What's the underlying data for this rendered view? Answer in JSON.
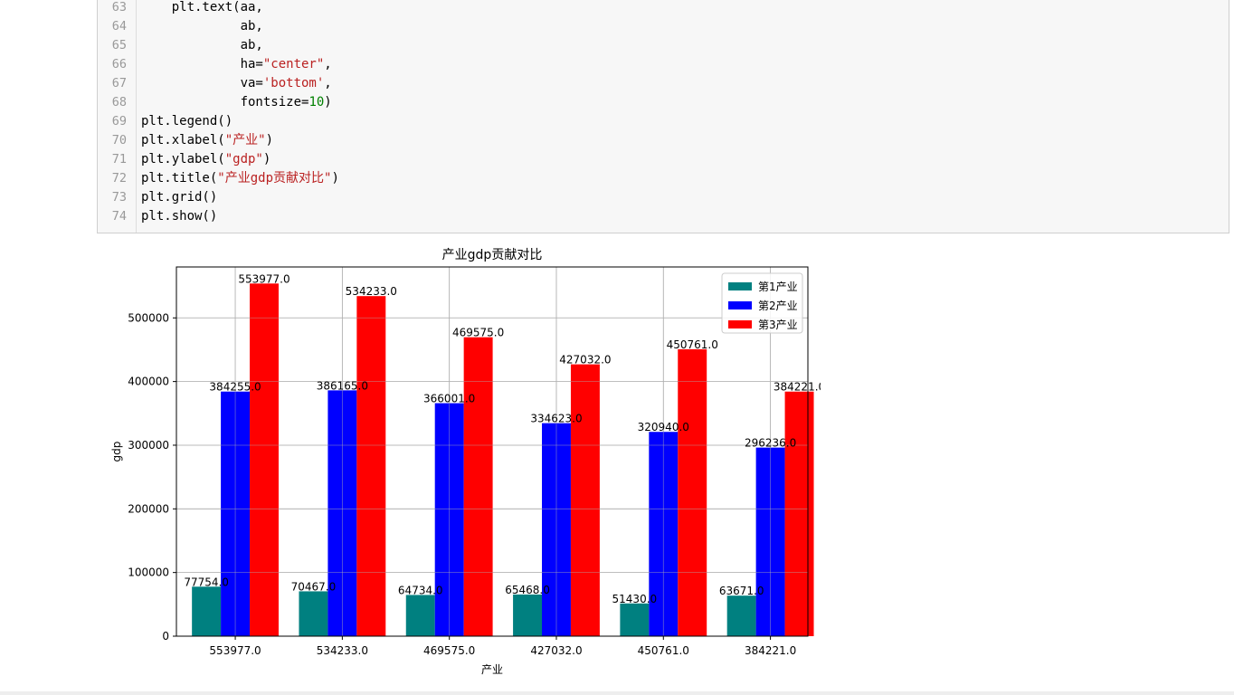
{
  "code_cell": {
    "lines": [
      {
        "num": "63",
        "tokens": [
          {
            "t": "    plt.text(aa,",
            "c": ""
          }
        ]
      },
      {
        "num": "64",
        "tokens": [
          {
            "t": "             ab,",
            "c": ""
          }
        ]
      },
      {
        "num": "65",
        "tokens": [
          {
            "t": "             ab,",
            "c": ""
          }
        ]
      },
      {
        "num": "66",
        "tokens": [
          {
            "t": "             ha=",
            "c": ""
          },
          {
            "t": "\"center\"",
            "c": "str"
          },
          {
            "t": ",",
            "c": ""
          }
        ]
      },
      {
        "num": "67",
        "tokens": [
          {
            "t": "             va=",
            "c": ""
          },
          {
            "t": "'bottom'",
            "c": "str"
          },
          {
            "t": ",",
            "c": ""
          }
        ]
      },
      {
        "num": "68",
        "tokens": [
          {
            "t": "             fontsize=",
            "c": ""
          },
          {
            "t": "10",
            "c": "num"
          },
          {
            "t": ")",
            "c": ""
          }
        ]
      },
      {
        "num": "69",
        "tokens": [
          {
            "t": "plt.legend()",
            "c": ""
          }
        ]
      },
      {
        "num": "70",
        "tokens": [
          {
            "t": "plt.xlabel(",
            "c": ""
          },
          {
            "t": "\"产业\"",
            "c": "str"
          },
          {
            "t": ")",
            "c": ""
          }
        ]
      },
      {
        "num": "71",
        "tokens": [
          {
            "t": "plt.ylabel(",
            "c": ""
          },
          {
            "t": "\"gdp\"",
            "c": "str"
          },
          {
            "t": ")",
            "c": ""
          }
        ]
      },
      {
        "num": "72",
        "tokens": [
          {
            "t": "plt.title(",
            "c": ""
          },
          {
            "t": "\"产业gdp贡献对比\"",
            "c": "str"
          },
          {
            "t": ")",
            "c": ""
          }
        ]
      },
      {
        "num": "73",
        "tokens": [
          {
            "t": "plt.grid()",
            "c": ""
          }
        ]
      },
      {
        "num": "74",
        "tokens": [
          {
            "t": "plt.show()",
            "c": ""
          }
        ]
      }
    ]
  },
  "chart_data": {
    "type": "bar",
    "title": "产业gdp贡献对比",
    "xlabel": "产业",
    "ylabel": "gdp",
    "categories": [
      "553977.0",
      "534233.0",
      "469575.0",
      "427032.0",
      "450761.0",
      "384221.0"
    ],
    "series": [
      {
        "name": "第1产业",
        "color": "#008080",
        "values": [
          77754,
          70467,
          64734,
          65468,
          51430,
          63671
        ]
      },
      {
        "name": "第2产业",
        "color": "#0000ff",
        "values": [
          384255,
          386165,
          366001,
          334623,
          320940,
          296236
        ]
      },
      {
        "name": "第3产业",
        "color": "#ff0000",
        "values": [
          553977,
          534233,
          469575,
          427032,
          450761,
          384221
        ]
      }
    ],
    "data_labels": [
      [
        "77754.0",
        "70467.0",
        "64734.0",
        "65468.0",
        "51430.0",
        "63671.0"
      ],
      [
        "384255.0",
        "386165.0",
        "366001.0",
        "334623.0",
        "320940.0",
        "296236.0"
      ],
      [
        "553977.0",
        "534233.0",
        "469575.0",
        "427032.0",
        "450761.0",
        "384221.0"
      ]
    ],
    "yticks": [
      0,
      100000,
      200000,
      300000,
      400000,
      500000
    ],
    "ytick_labels": [
      "0",
      "100000",
      "200000",
      "300000",
      "400000",
      "500000"
    ],
    "ylim": [
      0,
      580000
    ],
    "grid": true,
    "legend_position": "top-right"
  }
}
